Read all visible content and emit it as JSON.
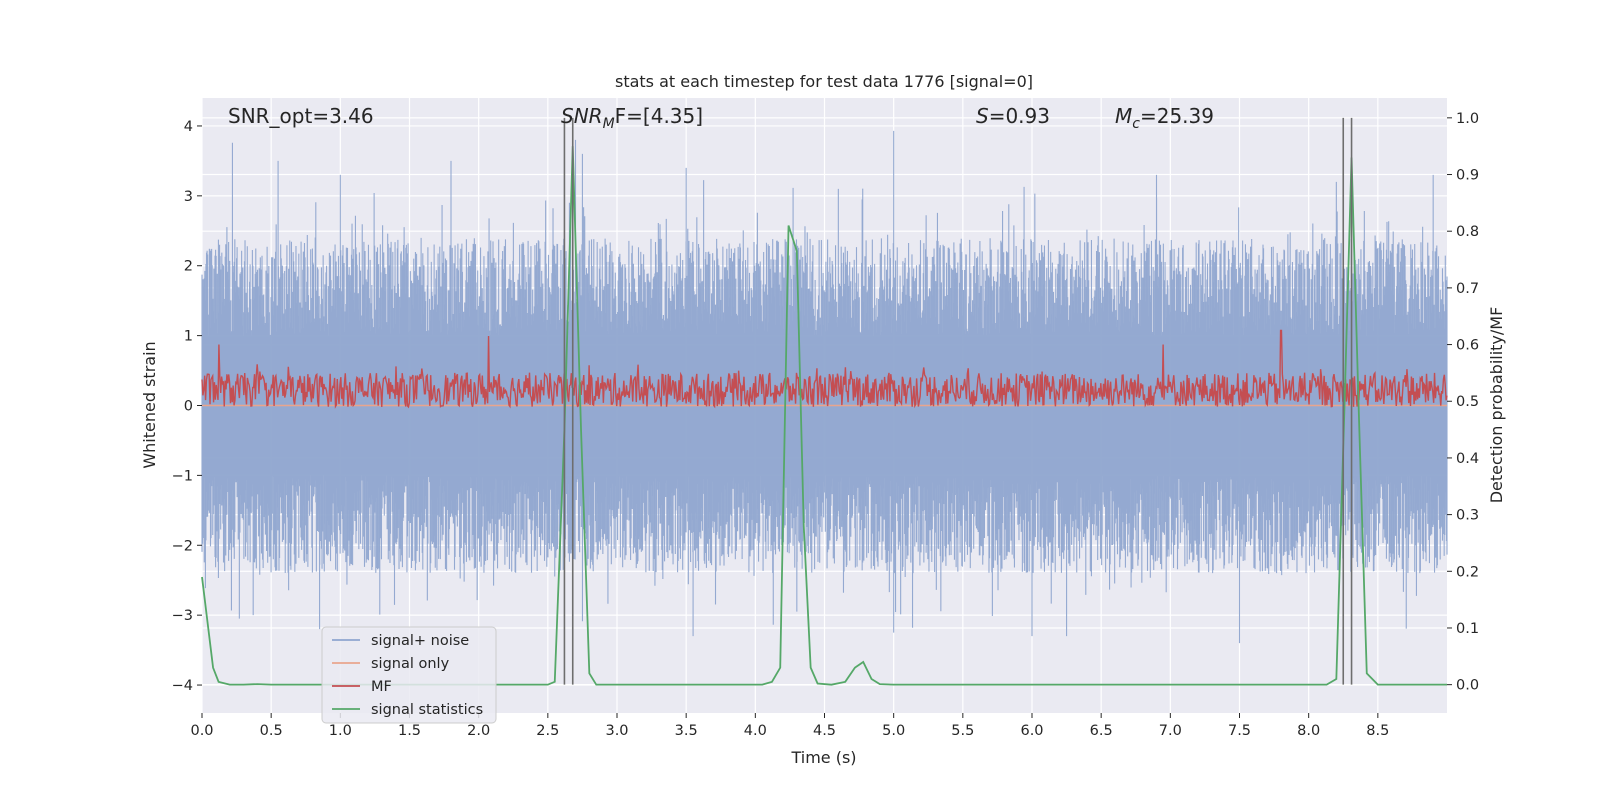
{
  "chart_data": {
    "type": "line",
    "title": "stats at each timestep for test data 1776 [signal=0]",
    "xlabel": "Time (s)",
    "ylabel_left": "Whitened strain",
    "ylabel_right": "Detection probability/MF",
    "xlim": [
      0.0,
      9.0
    ],
    "ylim_left": [
      -4.4,
      4.4
    ],
    "ylim_right": [
      -0.05,
      1.035
    ],
    "x_ticks": [
      0.0,
      0.5,
      1.0,
      1.5,
      2.0,
      2.5,
      3.0,
      3.5,
      4.0,
      4.5,
      5.0,
      5.5,
      6.0,
      6.5,
      7.0,
      7.5,
      8.0,
      8.5
    ],
    "x_tick_labels": [
      "0.0",
      "0.5",
      "1.0",
      "1.5",
      "2.0",
      "2.5",
      "3.0",
      "3.5",
      "4.0",
      "4.5",
      "5.0",
      "5.5",
      "6.0",
      "6.5",
      "7.0",
      "7.5",
      "8.0",
      "8.5"
    ],
    "y_left_ticks": [
      -4,
      -3,
      -2,
      -1,
      0,
      1,
      2,
      3,
      4
    ],
    "y_left_tick_labels": [
      "−4",
      "−3",
      "−2",
      "−1",
      "0",
      "1",
      "2",
      "3",
      "4"
    ],
    "y_right_ticks": [
      0.0,
      0.1,
      0.2,
      0.3,
      0.4,
      0.5,
      0.6,
      0.7,
      0.8,
      0.9,
      1.0
    ],
    "y_right_tick_labels": [
      "0.0",
      "0.1",
      "0.2",
      "0.3",
      "0.4",
      "0.5",
      "0.6",
      "0.7",
      "0.8",
      "0.9",
      "1.0"
    ],
    "grid": true,
    "legend_position": "lower-left",
    "annotations": {
      "snr_opt": "SNR_opt=3.46",
      "snr_mf_main": "SNR",
      "snr_mf_sub": "M",
      "snr_mf_rest": "F=[4.35]",
      "s_main": "S",
      "s_rest": "=0.93",
      "mc_main": "M",
      "mc_sub": "c",
      "mc_rest": "=25.39"
    },
    "series": [
      {
        "name": "signal+ noise",
        "color": "#8fa5cf",
        "kind": "noise",
        "axis": "left",
        "envelope_upper_range": [
          1.0,
          2.4
        ],
        "envelope_lower_range": [
          -2.4,
          -1.0
        ],
        "spike_max": [
          [
            0.22,
            3.76
          ],
          [
            0.55,
            3.5
          ],
          [
            0.37,
            -3.0
          ],
          [
            0.27,
            -3.05
          ],
          [
            1.0,
            3.3
          ],
          [
            0.85,
            -3.2
          ],
          [
            1.8,
            3.5
          ],
          [
            2.7,
            3.8
          ],
          [
            2.75,
            3.6
          ],
          [
            3.55,
            -3.3
          ],
          [
            3.5,
            3.4
          ],
          [
            4.6,
            3.1
          ],
          [
            4.3,
            -2.95
          ],
          [
            5.0,
            3.93
          ],
          [
            5.0,
            -3.25
          ],
          [
            6.0,
            -3.3
          ],
          [
            6.25,
            -3.3
          ],
          [
            6.9,
            3.3
          ],
          [
            7.5,
            -3.4
          ],
          [
            8.2,
            3.2
          ],
          [
            8.9,
            3.3
          ]
        ]
      },
      {
        "name": "signal only",
        "color": "#e9a58d",
        "kind": "flat",
        "axis": "left",
        "points": [
          [
            0.0,
            0.0
          ],
          [
            9.0,
            0.0
          ]
        ]
      },
      {
        "name": "MF",
        "color": "#c44e52",
        "kind": "mf",
        "axis": "right",
        "baseline": 0.52,
        "spread": 0.03,
        "peaks": [
          [
            0.12,
            0.6
          ],
          [
            2.07,
            0.615
          ],
          [
            6.95,
            0.6
          ],
          [
            7.8,
            0.625
          ]
        ]
      },
      {
        "name": "signal statistics",
        "color": "#55a868",
        "kind": "line",
        "axis": "right",
        "points": [
          [
            0.0,
            0.19
          ],
          [
            0.08,
            0.03
          ],
          [
            0.12,
            0.005
          ],
          [
            0.2,
            0.0
          ],
          [
            0.3,
            0.0
          ],
          [
            0.4,
            0.001
          ],
          [
            0.5,
            0.0
          ],
          [
            1.0,
            0.0
          ],
          [
            2.5,
            0.0
          ],
          [
            2.55,
            0.005
          ],
          [
            2.62,
            0.45
          ],
          [
            2.68,
            0.95
          ],
          [
            2.74,
            0.45
          ],
          [
            2.8,
            0.02
          ],
          [
            2.85,
            0.0
          ],
          [
            3.5,
            0.0
          ],
          [
            4.05,
            0.0
          ],
          [
            4.12,
            0.005
          ],
          [
            4.18,
            0.03
          ],
          [
            4.24,
            0.81
          ],
          [
            4.3,
            0.765
          ],
          [
            4.35,
            0.28
          ],
          [
            4.4,
            0.03
          ],
          [
            4.45,
            0.002
          ],
          [
            4.55,
            0.0
          ],
          [
            4.65,
            0.005
          ],
          [
            4.72,
            0.03
          ],
          [
            4.78,
            0.04
          ],
          [
            4.84,
            0.01
          ],
          [
            4.9,
            0.001
          ],
          [
            5.0,
            0.0
          ],
          [
            6.0,
            0.0
          ],
          [
            7.0,
            0.0
          ],
          [
            8.13,
            0.0
          ],
          [
            8.2,
            0.01
          ],
          [
            8.26,
            0.5
          ],
          [
            8.31,
            0.93
          ],
          [
            8.36,
            0.5
          ],
          [
            8.42,
            0.02
          ],
          [
            8.5,
            0.0
          ],
          [
            9.0,
            0.0
          ]
        ]
      }
    ],
    "vertical_markers": [
      {
        "x": 2.62,
        "color": "#6e6e6e"
      },
      {
        "x": 2.68,
        "color": "#6e6e6e"
      },
      {
        "x": 8.25,
        "color": "#6e6e6e"
      },
      {
        "x": 8.31,
        "color": "#6e6e6e"
      }
    ],
    "colors": {
      "plot_background": "#eaeaf2",
      "grid": "#ffffff",
      "legend_background": "#eaeaf2",
      "legend_border": "#cccccc",
      "text": "#262626"
    }
  }
}
